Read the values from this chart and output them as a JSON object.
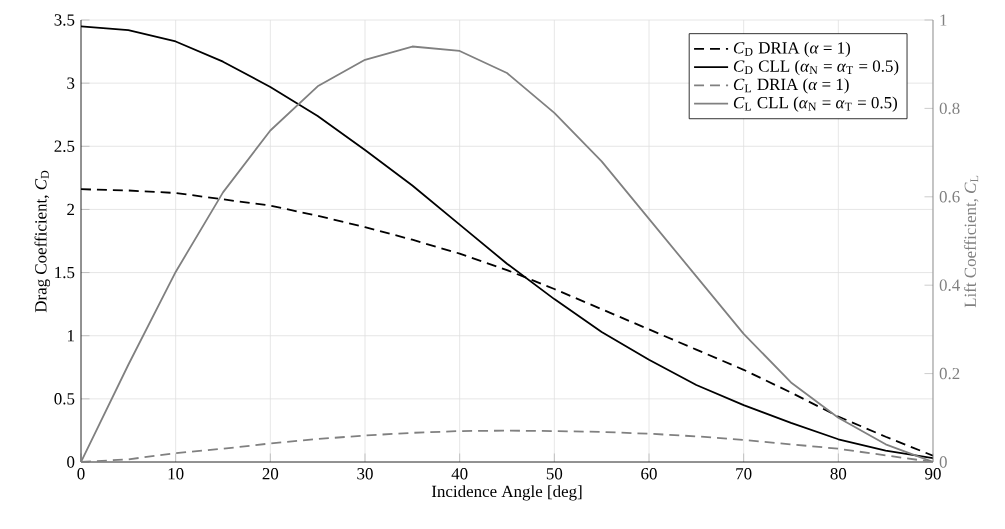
{
  "chart_data": {
    "type": "line",
    "xlabel": "Incidence Angle [deg]",
    "ylabel": "Drag Coefficient, *C*$_{D}$",
    "y2label": "Lift Coefficient, *C*$_{L}$",
    "x": [
      0,
      5,
      10,
      15,
      20,
      25,
      30,
      35,
      40,
      45,
      50,
      55,
      60,
      65,
      70,
      75,
      80,
      85,
      90
    ],
    "xlim": [
      0,
      90
    ],
    "xticks": [
      0,
      10,
      20,
      30,
      40,
      50,
      60,
      70,
      80,
      90
    ],
    "ylim": [
      0,
      3.5
    ],
    "yticks": [
      0,
      0.5,
      1,
      1.5,
      2,
      2.5,
      3,
      3.5
    ],
    "y2lim": [
      0,
      1
    ],
    "y2ticks": [
      0,
      0.2,
      0.4,
      0.6,
      0.8,
      1
    ],
    "grid": true,
    "legend": "top right",
    "series": [
      {
        "name": "*C*$_{D}$ DRIA (*α* = 1)",
        "color": "#000000",
        "line_style": "dashed",
        "values": [
          2.16,
          2.15,
          2.13,
          2.08,
          2.03,
          1.95,
          1.86,
          1.76,
          1.65,
          1.52,
          1.37,
          1.21,
          1.05,
          0.89,
          0.73,
          0.55,
          0.36,
          0.2,
          0.05
        ]
      },
      {
        "name": "*C*$_{D}$ CLL (*α*$_{N}$ = *α*$_{T}$ = 0.5)",
        "color": "#000000",
        "line_style": "solid",
        "values": [
          3.45,
          3.42,
          3.33,
          3.17,
          2.97,
          2.74,
          2.47,
          2.19,
          1.88,
          1.57,
          1.29,
          1.03,
          0.81,
          0.61,
          0.45,
          0.31,
          0.18,
          0.09,
          0.03
        ]
      },
      {
        "name": "*C*$_{L}$ DRIA (*α* = 1)",
        "color": "#808080",
        "line_style": "dashed",
        "axis": "y2",
        "values": [
          0,
          0.006,
          0.02,
          0.03,
          0.042,
          0.052,
          0.06,
          0.066,
          0.07,
          0.071,
          0.07,
          0.068,
          0.064,
          0.058,
          0.05,
          0.04,
          0.03,
          0.015,
          0
        ]
      },
      {
        "name": "*C*$_{L}$ CLL (*α*$_{N}$ = *α*$_{T}$ = 0.5)",
        "color": "#808080",
        "line_style": "solid",
        "axis": "y2",
        "values": [
          0,
          0.22,
          0.43,
          0.61,
          0.75,
          0.85,
          0.91,
          0.94,
          0.93,
          0.88,
          0.79,
          0.68,
          0.55,
          0.42,
          0.29,
          0.18,
          0.1,
          0.04,
          0
        ]
      }
    ]
  }
}
